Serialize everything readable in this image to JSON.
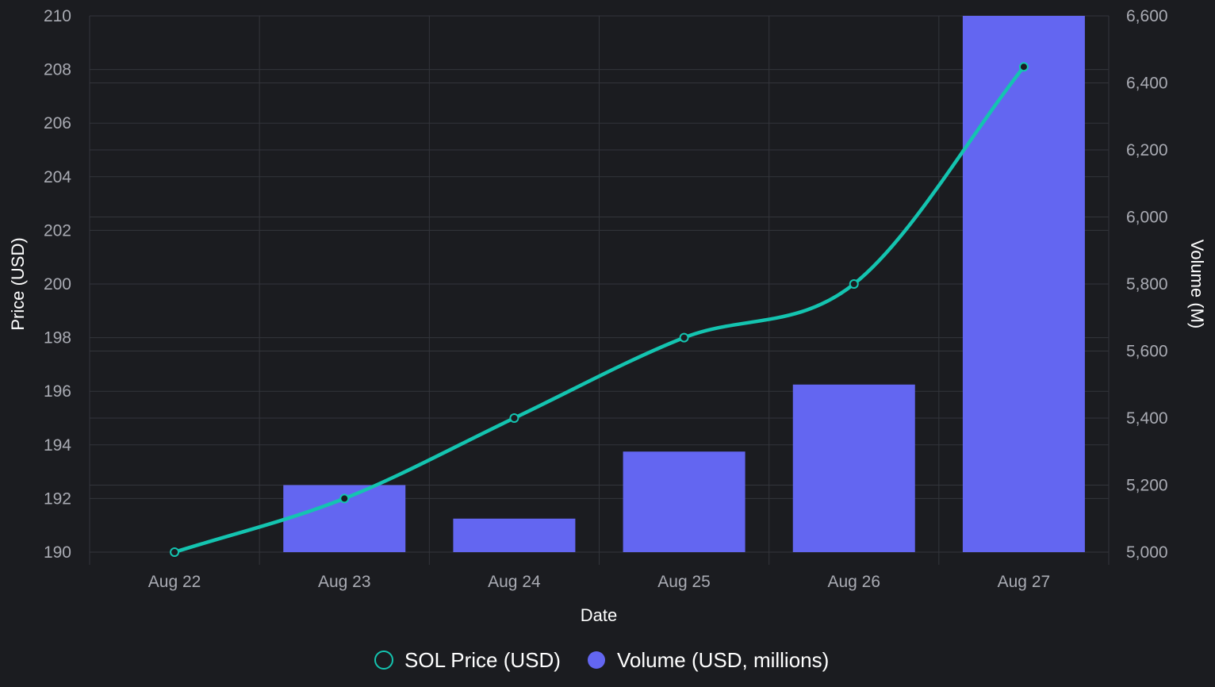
{
  "chart_data": {
    "type": "bar",
    "categories": [
      "Aug 22",
      "Aug 23",
      "Aug 24",
      "Aug 25",
      "Aug 26",
      "Aug 27"
    ],
    "series": [
      {
        "name": "SOL Price (USD)",
        "type": "line",
        "axis": "left",
        "color": "#14c4b0",
        "values": [
          190,
          192,
          195,
          198,
          200,
          208.1
        ]
      },
      {
        "name": "Volume (USD, millions)",
        "type": "bar",
        "axis": "right",
        "color": "#6366f1",
        "values": [
          5000,
          5200,
          5100,
          5300,
          5500,
          6600
        ]
      }
    ],
    "xlabel": "Date",
    "ylabel": "Price (USD)",
    "y2label": "Volume (M)",
    "ylim": [
      190,
      210
    ],
    "y2lim": [
      5000,
      6600
    ],
    "yticks": [
      "190",
      "192",
      "194",
      "196",
      "198",
      "200",
      "202",
      "204",
      "206",
      "208",
      "210"
    ],
    "y2ticks": [
      "5,000",
      "5,200",
      "5,400",
      "5,600",
      "5,800",
      "6,000",
      "6,200",
      "6,400",
      "6,600"
    ],
    "grid": true,
    "legend_position": "bottom"
  }
}
